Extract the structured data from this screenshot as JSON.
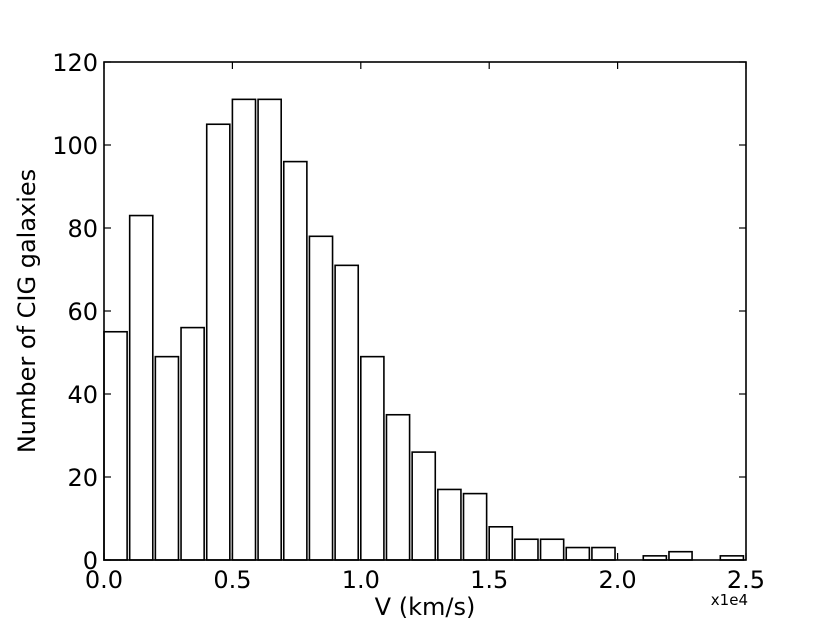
{
  "chart_data": {
    "type": "bar",
    "title": "",
    "xlabel": "V (km/s)",
    "ylabel": "Number of CIG galaxies",
    "x_offset_label": "x1e4",
    "xlim": [
      0,
      2.5
    ],
    "ylim": [
      0,
      120
    ],
    "xticks": [
      0.0,
      0.5,
      1.0,
      1.5,
      2.0,
      2.5
    ],
    "xtick_labels": [
      "0.0",
      "0.5",
      "1.0",
      "1.5",
      "2.0",
      "2.5"
    ],
    "yticks": [
      0,
      20,
      40,
      60,
      80,
      100,
      120
    ],
    "ytick_labels": [
      "0",
      "20",
      "40",
      "60",
      "80",
      "100",
      "120"
    ],
    "bin_width": 0.1,
    "bar_width": 0.09,
    "bin_starts": [
      0.0,
      0.1,
      0.2,
      0.3,
      0.4,
      0.5,
      0.6,
      0.7,
      0.8,
      0.9,
      1.0,
      1.1,
      1.2,
      1.3,
      1.4,
      1.5,
      1.6,
      1.7,
      1.8,
      1.9,
      2.0,
      2.1,
      2.2,
      2.3,
      2.4
    ],
    "values": [
      55,
      83,
      49,
      56,
      105,
      111,
      111,
      96,
      78,
      71,
      49,
      35,
      26,
      17,
      16,
      8,
      5,
      5,
      3,
      3,
      0,
      1,
      2,
      0,
      1
    ],
    "grid": false,
    "legend": "none"
  }
}
